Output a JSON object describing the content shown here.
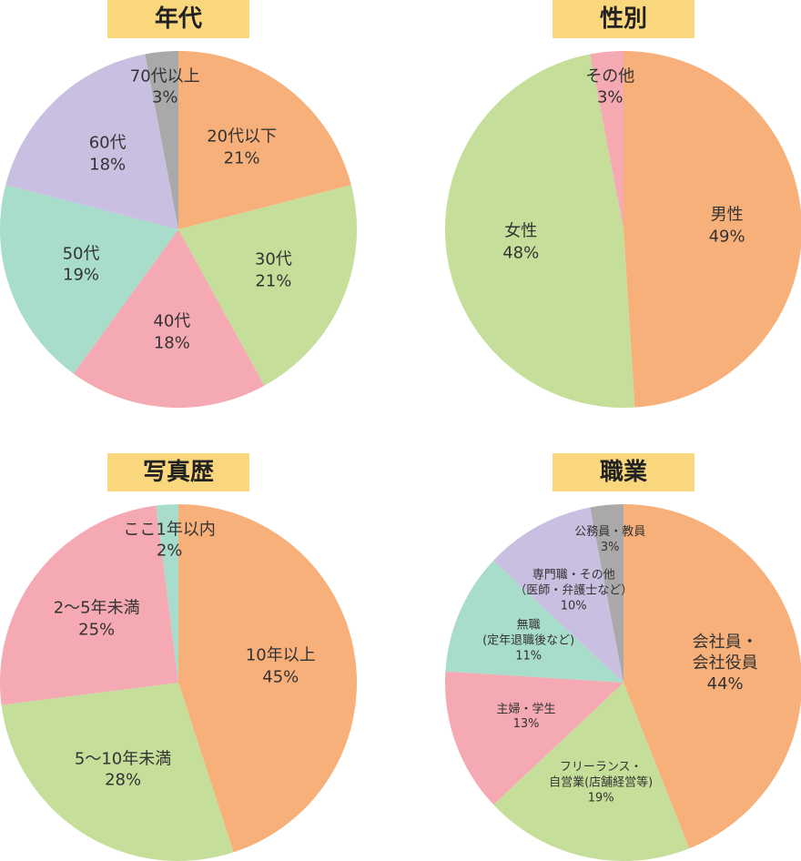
{
  "chart_data": [
    {
      "type": "pie",
      "title": "年代",
      "categories": [
        "20代以下",
        "30代",
        "40代",
        "50代",
        "60代",
        "70代以上"
      ],
      "values": [
        21,
        21,
        18,
        19,
        18,
        3
      ],
      "value_labels": [
        "21%",
        "21%",
        "18%",
        "19%",
        "18%",
        "3%"
      ],
      "colors": [
        "#f8b07a",
        "#c5df9a",
        "#f4a9b3",
        "#a8dccb",
        "#c9bfe0",
        "#a9a9a9"
      ]
    },
    {
      "type": "pie",
      "title": "性別",
      "categories": [
        "男性",
        "女性",
        "その他"
      ],
      "values": [
        49,
        48,
        3
      ],
      "value_labels": [
        "49%",
        "48%",
        "3%"
      ],
      "colors": [
        "#f8b07a",
        "#c5df9a",
        "#f4a9b3"
      ]
    },
    {
      "type": "pie",
      "title": "写真歴",
      "categories": [
        "10年以上",
        "5〜10年未満",
        "2〜5年未満",
        "ここ1年以内"
      ],
      "values": [
        45,
        28,
        25,
        2
      ],
      "value_labels": [
        "45%",
        "28%",
        "25%",
        "2%"
      ],
      "colors": [
        "#f8b07a",
        "#c5df9a",
        "#f4a9b3",
        "#a8dccb"
      ]
    },
    {
      "type": "pie",
      "title": "職業",
      "categories": [
        "会社員・会社役員",
        "フリーランス・\n自営業(店舗経営等)",
        "主婦・学生",
        "無職\n(定年退職後など)",
        "専門職・その他\n（医師・弁護士など）",
        "公務員・教員"
      ],
      "values": [
        44,
        19,
        13,
        11,
        10,
        3
      ],
      "value_labels": [
        "44%",
        "19%",
        "13%",
        "11%",
        "10%",
        "3%"
      ],
      "colors": [
        "#f8b07a",
        "#c5df9a",
        "#f4a9b3",
        "#a8dccb",
        "#c9bfe0",
        "#a9a9a9"
      ]
    }
  ]
}
